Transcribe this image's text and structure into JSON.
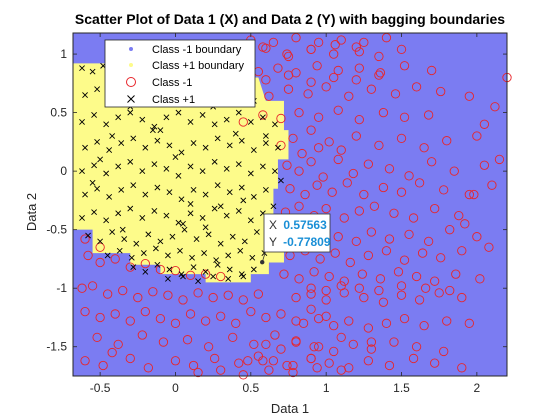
{
  "chart_data": {
    "type": "scatter",
    "title": "Scatter Plot of Data 1 (X) and Data 2 (Y) with bagging boundaries",
    "xlabel": "Data 1",
    "ylabel": "Data 2",
    "xlim": [
      -0.68,
      2.2
    ],
    "ylim": [
      -1.75,
      1.18
    ],
    "xticks": [
      "-0.5",
      "0",
      "0.5",
      "1",
      "1.5",
      "2"
    ],
    "xtick_values": [
      -0.5,
      0,
      0.5,
      1,
      1.5,
      2
    ],
    "yticks": [
      "1",
      "0.5",
      "0",
      "-0.5",
      "-1",
      "-1.5"
    ],
    "ytick_values": [
      1,
      0.5,
      0,
      -0.5,
      -1,
      -1.5
    ],
    "grid": false,
    "legend_placement": "top-left",
    "legend": [
      {
        "label": "Class -1 boundary",
        "marker": "dot",
        "color": "#7b7cf2"
      },
      {
        "label": "Class +1 boundary",
        "marker": "dot",
        "color": "#fdfb8a"
      },
      {
        "label": "Class -1",
        "marker": "circle",
        "color": "#e8252b"
      },
      {
        "label": "Class +1",
        "marker": "x",
        "color": "#000000"
      }
    ],
    "colors": {
      "class_minus_region": "#7b7cf2",
      "class_plus_region": "#fdfb8a",
      "class_minus_marker": "#e8252b",
      "class_plus_marker": "#000000"
    },
    "class_plus_region_polygon": [
      [
        -0.68,
        0.72
      ],
      [
        -0.68,
        0.92
      ],
      [
        0.05,
        0.92
      ],
      [
        0.05,
        0.88
      ],
      [
        0.3,
        0.88
      ],
      [
        0.35,
        0.8
      ],
      [
        0.55,
        0.8
      ],
      [
        0.6,
        0.6
      ],
      [
        0.72,
        0.6
      ],
      [
        0.72,
        0.35
      ],
      [
        0.75,
        0.35
      ],
      [
        0.75,
        0.1
      ],
      [
        0.68,
        0.1
      ],
      [
        0.68,
        -0.15
      ],
      [
        0.65,
        -0.15
      ],
      [
        0.65,
        -0.45
      ],
      [
        0.68,
        -0.45
      ],
      [
        0.68,
        -0.6
      ],
      [
        0.72,
        -0.6
      ],
      [
        0.72,
        -0.78
      ],
      [
        0.62,
        -0.78
      ],
      [
        0.62,
        -0.88
      ],
      [
        0.5,
        -0.88
      ],
      [
        0.5,
        -0.95
      ],
      [
        0.2,
        -0.95
      ],
      [
        0.2,
        -0.88
      ],
      [
        -0.1,
        -0.88
      ],
      [
        -0.1,
        -0.8
      ],
      [
        -0.3,
        -0.8
      ],
      [
        -0.3,
        -0.7
      ],
      [
        -0.55,
        -0.7
      ],
      [
        -0.55,
        -0.5
      ],
      [
        -0.68,
        -0.5
      ]
    ],
    "series": [
      {
        "name": "Class -1",
        "marker": "circle",
        "x": [
          -0.58,
          -0.5,
          -0.4,
          -0.3,
          -0.2,
          -0.1,
          0.0,
          0.1,
          0.2,
          0.3,
          -0.62,
          -0.55,
          -0.45,
          -0.35,
          -0.25,
          -0.15,
          -0.05,
          0.05,
          0.15,
          0.25,
          0.35,
          0.45,
          0.55,
          -0.6,
          -0.5,
          -0.4,
          -0.3,
          -0.2,
          -0.1,
          0.0,
          0.1,
          0.2,
          0.3,
          0.4,
          0.5,
          0.6,
          0.7,
          0.8,
          0.9,
          1.0,
          -0.52,
          -0.38,
          -0.22,
          -0.08,
          0.08,
          0.22,
          0.38,
          0.52,
          0.66,
          0.8,
          0.95,
          1.1,
          1.3,
          -0.6,
          -0.48,
          -0.42,
          -0.3,
          -0.18,
          -0.6,
          -0.5,
          0.7,
          0.78,
          0.84,
          0.9,
          0.95,
          1.02,
          1.1,
          1.2,
          1.35,
          1.5,
          1.65,
          1.8,
          2.0,
          0.74,
          0.82,
          0.9,
          0.98,
          1.08,
          1.18,
          1.28,
          1.42,
          1.55,
          1.7,
          1.85,
          2.05,
          0.76,
          0.86,
          0.94,
          1.04,
          1.14,
          1.25,
          1.38,
          1.5,
          1.62,
          1.78,
          1.95,
          2.1,
          0.73,
          0.82,
          0.92,
          1.0,
          1.12,
          1.22,
          1.32,
          1.45,
          1.58,
          1.72,
          1.88,
          0.78,
          0.88,
          0.98,
          1.08,
          1.2,
          1.3,
          1.42,
          1.55,
          1.68,
          1.82,
          2.0,
          0.76,
          0.86,
          0.96,
          1.06,
          1.16,
          1.28,
          1.4,
          1.52,
          1.64,
          1.76,
          1.9,
          0.72,
          0.82,
          0.92,
          1.02,
          1.12,
          1.24,
          1.36,
          1.48,
          1.6,
          1.72,
          1.86,
          2.02,
          0.8,
          0.9,
          1.0,
          1.12,
          1.25,
          1.38,
          1.5,
          1.62,
          1.75,
          1.9,
          0.85,
          0.95,
          1.05,
          1.15,
          1.28,
          1.4,
          1.52,
          1.65,
          1.8,
          1.95,
          0.6,
          0.7,
          0.8,
          0.92,
          1.05,
          1.18,
          1.3,
          1.45,
          1.6,
          1.78,
          0.65,
          0.78,
          0.9,
          1.02,
          1.15,
          1.28,
          1.42,
          1.58,
          1.72,
          1.9,
          0.45,
          0.58,
          0.7,
          0.82,
          0.95,
          1.08,
          1.22,
          1.38,
          1.52,
          1.68,
          2.05,
          0.38,
          0.48,
          0.62,
          0.75,
          0.88,
          1.0,
          1.15,
          1.3,
          1.46,
          1.6,
          1.76,
          1.95,
          0.55,
          0.68,
          0.8,
          0.94,
          1.08,
          1.22,
          1.36,
          1.52,
          1.7,
          0.42,
          0.6,
          0.75,
          0.9,
          1.05,
          1.2,
          1.35,
          1.5,
          0.5,
          0.65,
          0.8,
          0.95,
          1.1,
          1.25,
          1.4,
          0.6,
          0.75,
          0.9,
          1.05,
          1.2,
          1.35,
          0.4,
          0.58,
          0.74,
          0.9,
          1.06,
          1.22,
          0.15,
          0.3,
          0.45,
          0.62,
          0.78,
          0.94,
          1.1,
          0.0,
          0.12,
          0.26,
          0.42,
          0.58,
          0.74,
          0.9,
          2.2,
          2.12,
          2.15,
          1.98,
          1.92,
          2.08,
          0.9,
          1.0,
          1.1,
          1.22,
          1.35,
          1.5,
          1.66,
          1.82,
          0.48,
          0.55
        ],
        "y": [
          -0.72,
          -0.78,
          -0.75,
          -0.82,
          -0.79,
          -0.84,
          -0.85,
          -0.89,
          -0.88,
          -0.9,
          -1.0,
          -0.98,
          -1.05,
          -1.02,
          -1.08,
          -1.03,
          -1.06,
          -1.1,
          -1.04,
          -1.08,
          -1.06,
          -1.1,
          -1.05,
          -1.2,
          -1.25,
          -1.22,
          -1.28,
          -1.2,
          -1.26,
          -1.3,
          -1.22,
          -1.28,
          -1.24,
          -1.3,
          -1.2,
          -1.25,
          -1.22,
          -1.28,
          -1.18,
          -1.24,
          -1.42,
          -1.48,
          -1.4,
          -1.46,
          -1.44,
          -1.5,
          -1.42,
          -1.48,
          -1.4,
          -1.45,
          -1.5,
          -1.42,
          -1.46,
          -1.62,
          -1.66,
          -1.55,
          -1.6,
          -1.68,
          -0.58,
          -0.65,
          0.22,
          0.28,
          0.15,
          0.35,
          0.2,
          0.25,
          0.18,
          0.3,
          0.22,
          0.28,
          0.2,
          0.26,
          0.3,
          0.05,
          0.0,
          0.08,
          -0.05,
          0.1,
          -0.02,
          0.06,
          0.02,
          -0.04,
          0.08,
          0.0,
          0.05,
          -0.15,
          -0.2,
          -0.12,
          -0.18,
          -0.1,
          -0.2,
          -0.14,
          -0.18,
          -0.1,
          -0.16,
          -0.2,
          -0.12,
          -0.35,
          -0.3,
          -0.38,
          -0.32,
          -0.4,
          -0.34,
          -0.3,
          -0.36,
          -0.4,
          -0.32,
          -0.38,
          -0.52,
          -0.58,
          -0.5,
          -0.56,
          -0.6,
          -0.52,
          -0.58,
          -0.54,
          -0.6,
          -0.5,
          -0.56,
          -0.72,
          -0.68,
          -0.75,
          -0.7,
          -0.78,
          -0.72,
          -0.68,
          -0.76,
          -0.7,
          -0.74,
          -0.68,
          -0.88,
          -0.92,
          -0.86,
          -0.9,
          -0.94,
          -0.88,
          -0.92,
          -0.86,
          -0.9,
          -0.94,
          -0.88,
          -0.92,
          -1.08,
          -1.05,
          -1.1,
          -1.04,
          -1.08,
          -1.12,
          -1.06,
          -1.1,
          -1.04,
          -1.08,
          -1.3,
          -1.26,
          -1.32,
          -1.28,
          -1.34,
          -1.3,
          -1.26,
          -1.32,
          -1.28,
          -1.3,
          -1.48,
          -1.52,
          -1.46,
          -1.5,
          -1.54,
          -1.48,
          -1.52,
          -1.46,
          -1.5,
          -1.54,
          -1.62,
          -1.66,
          -1.6,
          -1.64,
          -1.68,
          -1.62,
          -1.66,
          -1.6,
          -1.64,
          -1.68,
          0.42,
          0.48,
          0.45,
          0.5,
          0.46,
          0.52,
          0.44,
          0.5,
          0.46,
          0.48,
          0.4,
          0.62,
          0.68,
          0.64,
          0.7,
          0.66,
          0.72,
          0.64,
          0.7,
          0.66,
          0.72,
          0.68,
          0.64,
          0.85,
          0.88,
          0.84,
          0.9,
          0.86,
          0.88,
          0.84,
          0.9,
          0.86,
          1.0,
          1.05,
          0.98,
          1.04,
          1.0,
          1.06,
          0.98,
          1.04,
          1.12,
          1.1,
          1.14,
          1.1,
          1.12,
          1.1,
          1.14,
          0.78,
          0.82,
          0.76,
          0.8,
          0.78,
          0.82,
          1.02,
          1.06,
          1.0,
          1.04,
          1.08,
          1.02,
          -1.72,
          -1.7,
          -1.74,
          -1.7,
          -1.72,
          -1.68,
          -1.7,
          -1.62,
          -1.66,
          -1.6,
          -1.64,
          -1.62,
          -1.66,
          -1.6,
          0.8,
          0.55,
          0.1,
          -0.2,
          -0.45,
          -0.65,
          -1.0,
          -1.02,
          -0.98,
          -1.0,
          -1.02,
          -0.98,
          -1.0,
          -1.02,
          -1.62,
          -1.58
        ]
      },
      {
        "name": "Class +1",
        "marker": "x",
        "x": [
          -0.62,
          -0.55,
          -0.48,
          -0.4,
          -0.32,
          -0.24,
          -0.16,
          -0.08,
          0.0,
          0.08,
          0.16,
          0.24,
          -0.6,
          -0.52,
          -0.44,
          -0.36,
          -0.28,
          -0.2,
          -0.12,
          -0.04,
          0.04,
          0.12,
          0.2,
          0.28,
          0.36,
          0.44,
          0.52,
          -0.62,
          -0.54,
          -0.46,
          -0.38,
          -0.3,
          -0.22,
          -0.14,
          -0.06,
          0.02,
          0.1,
          0.18,
          0.26,
          0.34,
          0.42,
          0.5,
          0.58,
          0.66,
          -0.6,
          -0.52,
          -0.44,
          -0.36,
          -0.28,
          -0.2,
          -0.12,
          -0.04,
          0.04,
          0.12,
          0.2,
          0.28,
          0.36,
          0.44,
          0.52,
          0.6,
          0.68,
          -0.62,
          -0.54,
          -0.46,
          -0.38,
          -0.3,
          -0.22,
          -0.14,
          -0.06,
          0.02,
          0.1,
          0.18,
          0.26,
          0.34,
          0.42,
          0.5,
          0.58,
          0.66,
          -0.6,
          -0.52,
          -0.44,
          -0.36,
          -0.28,
          -0.2,
          -0.12,
          -0.04,
          0.04,
          0.12,
          0.2,
          0.28,
          0.36,
          0.44,
          0.52,
          0.6,
          -0.62,
          -0.54,
          -0.46,
          -0.38,
          -0.3,
          -0.22,
          -0.14,
          -0.06,
          0.02,
          0.1,
          0.18,
          0.26,
          0.34,
          0.42,
          0.5,
          0.58,
          -0.58,
          -0.5,
          -0.42,
          -0.34,
          -0.26,
          -0.18,
          -0.1,
          -0.02,
          0.06,
          0.14,
          0.22,
          0.3,
          0.38,
          0.46,
          0.54,
          0.62,
          -0.45,
          -0.37,
          -0.29,
          -0.21,
          -0.13,
          -0.05,
          0.03,
          0.11,
          0.19,
          0.27,
          0.35,
          0.43,
          0.51,
          0.59,
          -0.28,
          -0.2,
          -0.12,
          -0.04,
          0.04,
          0.12,
          0.2,
          0.28,
          0.36,
          0.44,
          0.52,
          -0.05,
          0.05,
          0.15,
          0.25,
          0.35,
          0.45,
          -0.5,
          -0.42,
          -0.3,
          -0.2,
          -0.1,
          0.0,
          0.1,
          0.2,
          0.3,
          0.4,
          0.5,
          0.6,
          0.7,
          -0.55,
          -0.35,
          -0.15,
          0.05,
          0.25,
          0.45,
          0.65
        ],
        "y": [
          0.88,
          0.85,
          0.9,
          0.86,
          0.82,
          0.88,
          0.84,
          0.9,
          0.86,
          0.82,
          0.78,
          0.84,
          0.65,
          0.7,
          0.62,
          0.68,
          0.72,
          0.64,
          0.7,
          0.66,
          0.6,
          0.68,
          0.62,
          0.7,
          0.66,
          0.72,
          0.6,
          0.42,
          0.48,
          0.4,
          0.46,
          0.5,
          0.44,
          0.38,
          0.46,
          0.5,
          0.42,
          0.48,
          0.4,
          0.44,
          0.5,
          0.42,
          0.46,
          0.4,
          0.2,
          0.25,
          0.18,
          0.24,
          0.28,
          0.2,
          0.26,
          0.22,
          0.16,
          0.24,
          0.2,
          0.28,
          0.22,
          0.26,
          0.18,
          0.24,
          0.2,
          0.0,
          0.05,
          -0.02,
          0.04,
          0.08,
          0.0,
          0.06,
          0.02,
          -0.04,
          0.04,
          0.0,
          0.08,
          0.02,
          0.06,
          -0.02,
          0.04,
          0.0,
          -0.2,
          -0.15,
          -0.22,
          -0.16,
          -0.12,
          -0.2,
          -0.14,
          -0.18,
          -0.24,
          -0.16,
          -0.2,
          -0.12,
          -0.18,
          -0.14,
          -0.22,
          -0.16,
          -0.4,
          -0.35,
          -0.42,
          -0.36,
          -0.32,
          -0.4,
          -0.34,
          -0.38,
          -0.44,
          -0.36,
          -0.4,
          -0.32,
          -0.38,
          -0.34,
          -0.42,
          -0.36,
          -0.55,
          -0.6,
          -0.52,
          -0.58,
          -0.62,
          -0.54,
          -0.6,
          -0.56,
          -0.5,
          -0.58,
          -0.54,
          -0.62,
          -0.56,
          -0.6,
          -0.52,
          -0.58,
          -0.72,
          -0.68,
          -0.74,
          -0.7,
          -0.66,
          -0.72,
          -0.68,
          -0.74,
          -0.7,
          -0.76,
          -0.72,
          -0.68,
          -0.74,
          -0.7,
          -0.82,
          -0.86,
          -0.8,
          -0.84,
          -0.88,
          -0.82,
          -0.86,
          -0.8,
          -0.84,
          -0.88,
          -0.84,
          -0.92,
          -0.9,
          -0.94,
          -0.9,
          -0.92,
          -0.9,
          0.1,
          0.3,
          0.55,
          0.75,
          0.35,
          0.12,
          -0.28,
          -0.48,
          -0.3,
          0.32,
          0.58,
          0.3,
          -0.08,
          -0.1,
          -0.5,
          0.35,
          -0.45,
          0.55,
          -0.25,
          -0.3
        ]
      }
    ],
    "tooltip": {
      "x_label": "X",
      "x_value": "0.57563",
      "y_label": "Y",
      "y_value": "-0.77809",
      "anchor_x": 0.57563,
      "anchor_y": -0.77809
    }
  }
}
